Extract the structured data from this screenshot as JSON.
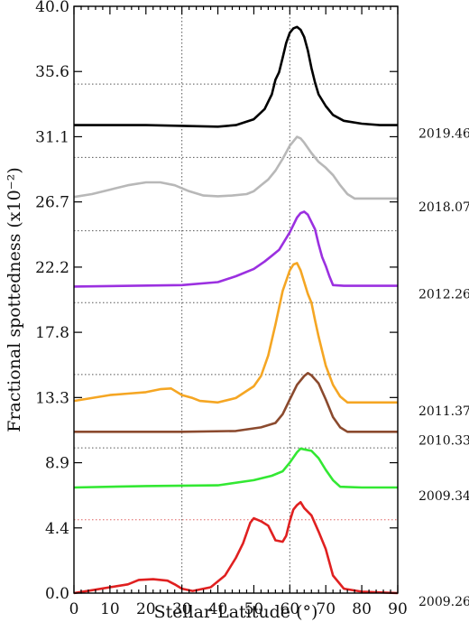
{
  "chart_data": {
    "type": "line",
    "title": "",
    "xlabel": "Stellar Latitude (°)",
    "ylabel": "Fractional spottedness (x10⁻²)",
    "xlim": [
      0,
      90
    ],
    "ylim": [
      0,
      40
    ],
    "x_ticks": [
      "0",
      "10",
      "20",
      "30",
      "40",
      "50",
      "60",
      "70",
      "80",
      "90"
    ],
    "y_ticks": [
      "0.0",
      "4.4",
      "8.9",
      "13.3",
      "17.8",
      "22.2",
      "26.7",
      "31.1",
      "35.6",
      "40.0"
    ],
    "grid": "dotted vertical lines at 30 and 60; dotted horizontal guide above each curve",
    "series": [
      {
        "name": "2009.26",
        "color": "#e02020",
        "guide_y": 5.0,
        "guide_color": "#e06060",
        "points": [
          [
            0,
            0.0
          ],
          [
            5,
            0.2
          ],
          [
            10,
            0.4
          ],
          [
            15,
            0.6
          ],
          [
            18,
            0.9
          ],
          [
            22,
            0.95
          ],
          [
            26,
            0.85
          ],
          [
            28,
            0.6
          ],
          [
            30,
            0.3
          ],
          [
            33,
            0.15
          ],
          [
            38,
            0.4
          ],
          [
            42,
            1.2
          ],
          [
            45,
            2.4
          ],
          [
            47,
            3.4
          ],
          [
            49,
            4.8
          ],
          [
            50,
            5.1
          ],
          [
            52,
            4.9
          ],
          [
            54,
            4.6
          ],
          [
            56,
            3.6
          ],
          [
            58,
            3.5
          ],
          [
            59,
            3.9
          ],
          [
            60,
            4.9
          ],
          [
            61,
            5.7
          ],
          [
            62,
            6.0
          ],
          [
            63,
            6.2
          ],
          [
            64,
            5.8
          ],
          [
            66,
            5.3
          ],
          [
            68,
            4.2
          ],
          [
            70,
            3.0
          ],
          [
            72,
            1.2
          ],
          [
            75,
            0.3
          ],
          [
            80,
            0.1
          ],
          [
            90,
            0.0
          ]
        ]
      },
      {
        "name": "2009.34",
        "color": "#33e833",
        "guide_y": 9.9,
        "points": [
          [
            0,
            7.2
          ],
          [
            20,
            7.3
          ],
          [
            40,
            7.35
          ],
          [
            50,
            7.7
          ],
          [
            55,
            8.0
          ],
          [
            58,
            8.3
          ],
          [
            60,
            8.9
          ],
          [
            62,
            9.6
          ],
          [
            63,
            9.85
          ],
          [
            64,
            9.8
          ],
          [
            66,
            9.7
          ],
          [
            68,
            9.2
          ],
          [
            70,
            8.4
          ],
          [
            72,
            7.7
          ],
          [
            74,
            7.25
          ],
          [
            80,
            7.2
          ],
          [
            90,
            7.2
          ]
        ]
      },
      {
        "name": "2010.33",
        "color": "#8b4a2e",
        "guide_y": 14.9,
        "points": [
          [
            0,
            11.0
          ],
          [
            30,
            11.0
          ],
          [
            45,
            11.05
          ],
          [
            52,
            11.3
          ],
          [
            56,
            11.6
          ],
          [
            58,
            12.2
          ],
          [
            60,
            13.2
          ],
          [
            62,
            14.2
          ],
          [
            64,
            14.8
          ],
          [
            65,
            15.0
          ],
          [
            66,
            14.85
          ],
          [
            68,
            14.3
          ],
          [
            70,
            13.2
          ],
          [
            72,
            12.0
          ],
          [
            74,
            11.3
          ],
          [
            76,
            11.0
          ],
          [
            90,
            11.0
          ]
        ]
      },
      {
        "name": "2011.37",
        "color": "#f5a623",
        "guide_y": 19.8,
        "points": [
          [
            0,
            13.1
          ],
          [
            5,
            13.3
          ],
          [
            10,
            13.5
          ],
          [
            15,
            13.6
          ],
          [
            20,
            13.7
          ],
          [
            24,
            13.9
          ],
          [
            27,
            13.95
          ],
          [
            30,
            13.5
          ],
          [
            33,
            13.3
          ],
          [
            35,
            13.1
          ],
          [
            40,
            13.0
          ],
          [
            45,
            13.3
          ],
          [
            50,
            14.1
          ],
          [
            52,
            14.8
          ],
          [
            54,
            16.2
          ],
          [
            56,
            18.3
          ],
          [
            58,
            20.6
          ],
          [
            60,
            22.0
          ],
          [
            61,
            22.4
          ],
          [
            62,
            22.5
          ],
          [
            63,
            22.0
          ],
          [
            64,
            21.2
          ],
          [
            65,
            20.4
          ],
          [
            66,
            19.8
          ],
          [
            67,
            18.6
          ],
          [
            68,
            17.5
          ],
          [
            69,
            16.5
          ],
          [
            70,
            15.5
          ],
          [
            72,
            14.2
          ],
          [
            74,
            13.4
          ],
          [
            76,
            13.0
          ],
          [
            90,
            13.0
          ]
        ]
      },
      {
        "name": "2012.26",
        "color": "#9b30e0",
        "guide_y": 24.7,
        "points": [
          [
            0,
            20.9
          ],
          [
            30,
            21.0
          ],
          [
            40,
            21.2
          ],
          [
            45,
            21.6
          ],
          [
            50,
            22.1
          ],
          [
            53,
            22.6
          ],
          [
            55,
            23.0
          ],
          [
            57,
            23.4
          ],
          [
            58,
            23.8
          ],
          [
            60,
            24.6
          ],
          [
            62,
            25.6
          ],
          [
            63,
            25.9
          ],
          [
            64,
            26.0
          ],
          [
            65,
            25.8
          ],
          [
            66,
            25.3
          ],
          [
            67,
            24.8
          ],
          [
            68,
            23.8
          ],
          [
            69,
            22.9
          ],
          [
            70,
            22.3
          ],
          [
            71,
            21.6
          ],
          [
            72,
            21.0
          ],
          [
            75,
            20.95
          ],
          [
            90,
            20.95
          ]
        ]
      },
      {
        "name": "2018.07",
        "color": "#b8b8b8",
        "guide_y": 29.7,
        "points": [
          [
            0,
            27.0
          ],
          [
            5,
            27.2
          ],
          [
            10,
            27.5
          ],
          [
            15,
            27.8
          ],
          [
            20,
            28.0
          ],
          [
            24,
            28.0
          ],
          [
            28,
            27.8
          ],
          [
            32,
            27.4
          ],
          [
            36,
            27.1
          ],
          [
            40,
            27.05
          ],
          [
            44,
            27.1
          ],
          [
            48,
            27.2
          ],
          [
            50,
            27.4
          ],
          [
            52,
            27.8
          ],
          [
            54,
            28.2
          ],
          [
            56,
            28.8
          ],
          [
            58,
            29.6
          ],
          [
            60,
            30.5
          ],
          [
            62,
            31.1
          ],
          [
            63,
            31.0
          ],
          [
            64,
            30.7
          ],
          [
            66,
            30.0
          ],
          [
            68,
            29.4
          ],
          [
            70,
            29.0
          ],
          [
            72,
            28.5
          ],
          [
            74,
            27.8
          ],
          [
            76,
            27.2
          ],
          [
            78,
            26.9
          ],
          [
            90,
            26.9
          ]
        ]
      },
      {
        "name": "2019.46",
        "color": "#000000",
        "guide_y": 34.7,
        "points": [
          [
            0,
            31.9
          ],
          [
            20,
            31.9
          ],
          [
            30,
            31.85
          ],
          [
            40,
            31.8
          ],
          [
            45,
            31.9
          ],
          [
            50,
            32.3
          ],
          [
            53,
            33.0
          ],
          [
            55,
            34.0
          ],
          [
            56,
            35.0
          ],
          [
            57,
            35.5
          ],
          [
            58,
            36.5
          ],
          [
            59,
            37.5
          ],
          [
            60,
            38.2
          ],
          [
            61,
            38.5
          ],
          [
            62,
            38.6
          ],
          [
            63,
            38.4
          ],
          [
            64,
            37.9
          ],
          [
            65,
            37.0
          ],
          [
            66,
            35.8
          ],
          [
            67,
            34.8
          ],
          [
            68,
            34.0
          ],
          [
            70,
            33.2
          ],
          [
            72,
            32.6
          ],
          [
            75,
            32.2
          ],
          [
            80,
            32.0
          ],
          [
            85,
            31.9
          ],
          [
            90,
            31.9
          ]
        ]
      }
    ]
  }
}
